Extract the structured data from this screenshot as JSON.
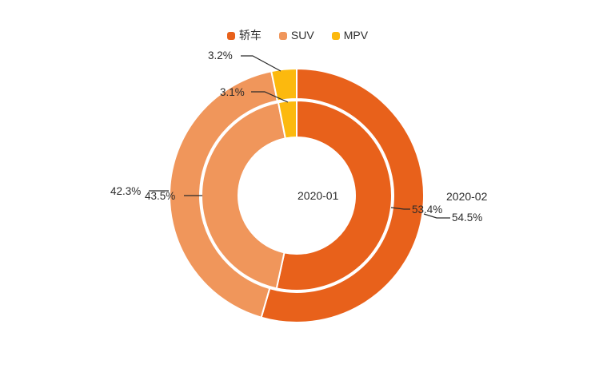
{
  "legend": {
    "items": [
      {
        "id": "sedan",
        "label": "轿车",
        "color": "#E8611B"
      },
      {
        "id": "suv",
        "label": "SUV",
        "color": "#F0965B"
      },
      {
        "id": "mpv",
        "label": "MPV",
        "color": "#FCB90E"
      }
    ]
  },
  "chart_data": {
    "type": "pie",
    "subtype": "nested-donut",
    "categories": [
      "轿车",
      "SUV",
      "MPV"
    ],
    "unit": "%",
    "colors": [
      "#E8611B",
      "#F0965B",
      "#FCB90E"
    ],
    "start_angle": "top",
    "direction": "clockwise",
    "legend_position": "top",
    "series": [
      {
        "name": "2020-01",
        "ring": "inner",
        "values": [
          53.4,
          43.5,
          3.1
        ]
      },
      {
        "name": "2020-02",
        "ring": "outer",
        "values": [
          54.5,
          42.3,
          3.2
        ]
      }
    ],
    "labels": {
      "inner": {
        "sedan": "53.4%",
        "suv": "43.5%",
        "mpv": "3.1%"
      },
      "outer": {
        "sedan": "54.5%",
        "suv": "42.3%",
        "mpv": "3.2%"
      }
    },
    "ring_titles": {
      "inner": "2020-01",
      "outer": "2020-02"
    }
  }
}
